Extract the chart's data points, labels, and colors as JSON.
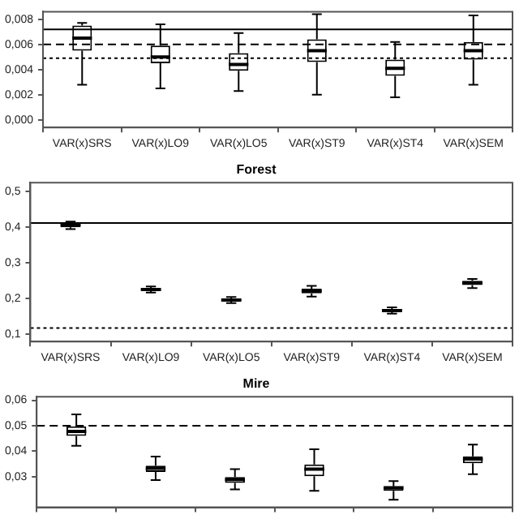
{
  "chart_data": [
    {
      "type": "box",
      "categories": [
        "VAR(x)SRS",
        "VAR(x)LO9",
        "VAR(x)LO5",
        "VAR(x)ST9",
        "VAR(x)ST4",
        "VAR(x)SEM"
      ],
      "boxes": [
        {
          "low": 0.0028,
          "q1": 0.0055,
          "median": 0.0065,
          "q3": 0.0075,
          "high": 0.0077
        },
        {
          "low": 0.0025,
          "q1": 0.0045,
          "median": 0.005,
          "q3": 0.0059,
          "high": 0.0076
        },
        {
          "low": 0.0023,
          "q1": 0.0039,
          "median": 0.0044,
          "q3": 0.0053,
          "high": 0.0069
        },
        {
          "low": 0.002,
          "q1": 0.0046,
          "median": 0.0055,
          "q3": 0.0064,
          "high": 0.0084
        },
        {
          "low": 0.0018,
          "q1": 0.0035,
          "median": 0.0041,
          "q3": 0.0048,
          "high": 0.0062
        },
        {
          "low": 0.0028,
          "q1": 0.0048,
          "median": 0.0055,
          "q3": 0.0062,
          "high": 0.0083
        }
      ],
      "ylim": [
        -0.0006,
        0.0086
      ],
      "yticks": [
        {
          "value": 0,
          "label": "0,000"
        },
        {
          "value": 0.002,
          "label": "0,002"
        },
        {
          "value": 0.004,
          "label": "0,004"
        },
        {
          "value": 0.006,
          "label": "0,006"
        },
        {
          "value": 0.008,
          "label": "0,008"
        }
      ],
      "ref_lines": [
        {
          "axis": "y",
          "value": 0.0072,
          "color": "#000000",
          "line_style": "solid"
        },
        {
          "axis": "y",
          "value": 0.006,
          "color": "#000000",
          "line_style": "dashed"
        },
        {
          "axis": "y",
          "value": 0.0049,
          "color": "#000000",
          "line_style": "dotted"
        }
      ]
    },
    {
      "type": "box",
      "title": "Forest",
      "categories": [
        "VAR(x)SRS",
        "VAR(x)LO9",
        "VAR(x)LO5",
        "VAR(x)ST9",
        "VAR(x)ST4",
        "VAR(x)SEM"
      ],
      "boxes": [
        {
          "low": 0.395,
          "q1": 0.4,
          "median": 0.406,
          "q3": 0.41,
          "high": 0.416
        },
        {
          "low": 0.217,
          "q1": 0.222,
          "median": 0.226,
          "q3": 0.23,
          "high": 0.234
        },
        {
          "low": 0.188,
          "q1": 0.193,
          "median": 0.196,
          "q3": 0.2,
          "high": 0.205
        },
        {
          "low": 0.206,
          "q1": 0.215,
          "median": 0.222,
          "q3": 0.228,
          "high": 0.236
        },
        {
          "low": 0.158,
          "q1": 0.163,
          "median": 0.167,
          "q3": 0.171,
          "high": 0.176
        },
        {
          "low": 0.23,
          "q1": 0.238,
          "median": 0.244,
          "q3": 0.25,
          "high": 0.255
        }
      ],
      "ylim": [
        0.08,
        0.525
      ],
      "yticks": [
        {
          "value": 0.1,
          "label": "0,1"
        },
        {
          "value": 0.2,
          "label": "0,2"
        },
        {
          "value": 0.3,
          "label": "0,3"
        },
        {
          "value": 0.4,
          "label": "0,4"
        },
        {
          "value": 0.5,
          "label": "0,5"
        }
      ],
      "ref_lines": [
        {
          "axis": "y",
          "value": 0.412,
          "color": "#000000",
          "line_style": "solid"
        },
        {
          "axis": "y",
          "value": 0.118,
          "color": "#000000",
          "line_style": "dotted"
        }
      ]
    },
    {
      "type": "box",
      "title": "Mire",
      "categories": [
        null,
        null,
        null,
        null,
        null,
        null
      ],
      "tick_labels": "y",
      "boxes": [
        {
          "low": 0.0421,
          "q1": 0.046,
          "median": 0.0478,
          "q3": 0.0498,
          "high": 0.0545
        },
        {
          "low": 0.0287,
          "q1": 0.0319,
          "median": 0.0333,
          "q3": 0.0343,
          "high": 0.0379
        },
        {
          "low": 0.025,
          "q1": 0.0276,
          "median": 0.0289,
          "q3": 0.0299,
          "high": 0.033
        },
        {
          "low": 0.0245,
          "q1": 0.0302,
          "median": 0.033,
          "q3": 0.0348,
          "high": 0.0408
        },
        {
          "low": 0.021,
          "q1": 0.0245,
          "median": 0.0257,
          "q3": 0.0262,
          "high": 0.0283
        },
        {
          "low": 0.031,
          "q1": 0.0353,
          "median": 0.037,
          "q3": 0.038,
          "high": 0.0426
        }
      ],
      "ylim": [
        0.018,
        0.0614
      ],
      "yticks": [
        {
          "value": 0.03,
          "label": "0,03"
        },
        {
          "value": 0.04,
          "label": "0,04"
        },
        {
          "value": 0.05,
          "label": "0,05"
        },
        {
          "value": 0.06,
          "label": "0,06"
        }
      ],
      "ref_lines": [
        {
          "axis": "y",
          "value": 0.05,
          "color": "#000000",
          "line_style": "dashed"
        }
      ]
    }
  ]
}
